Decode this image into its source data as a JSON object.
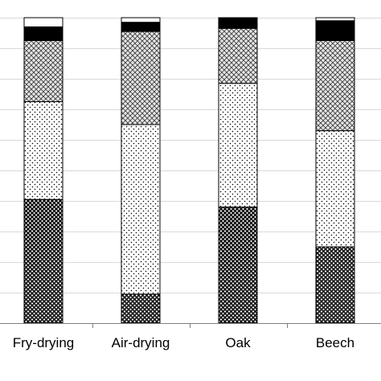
{
  "chart_data": {
    "type": "bar",
    "stacked": true,
    "percent": true,
    "categories": [
      "Fry-drying",
      "Air-drying",
      "Oak",
      "Beech"
    ],
    "series": [
      {
        "pattern": "dense-crosshatch",
        "values": [
          40.5,
          9.5,
          38,
          25
        ]
      },
      {
        "pattern": "sparse-dots",
        "values": [
          32,
          55.5,
          40.5,
          38
        ]
      },
      {
        "pattern": "crosshatch",
        "values": [
          20,
          30.5,
          18,
          29.5
        ]
      },
      {
        "pattern": "solid-black",
        "values": [
          4.5,
          3,
          3.5,
          6.5
        ]
      },
      {
        "pattern": "white",
        "values": [
          3,
          1.5,
          0,
          1
        ]
      }
    ],
    "ylim": [
      0,
      100
    ],
    "grid": true,
    "legend": false,
    "colors": {
      "dense_dark": "#1a1a1a",
      "dots": "#000000",
      "crosshatch_fill": "#cfcfcf",
      "solid": "#000000",
      "white": "#ffffff",
      "grid": "#d9d9d9",
      "axis": "#7f7f7f"
    }
  }
}
